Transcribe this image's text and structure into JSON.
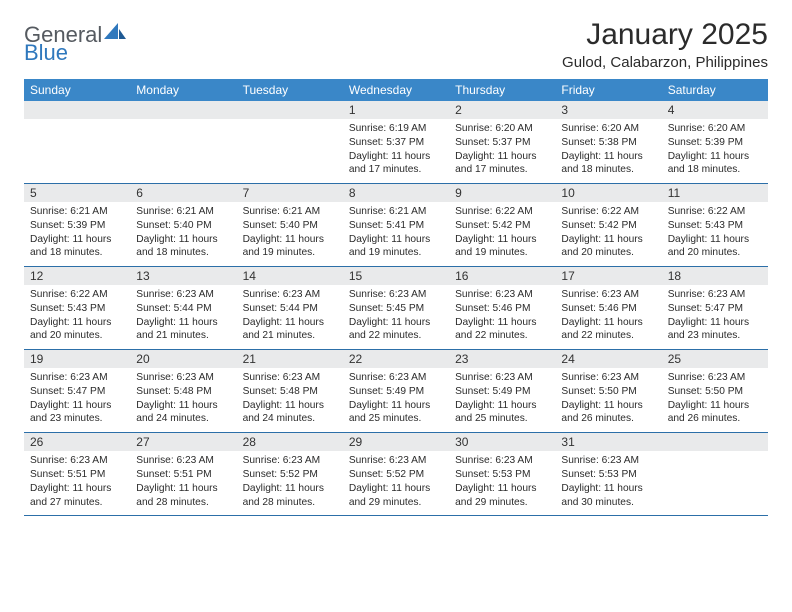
{
  "brand": {
    "part1": "General",
    "part2": "Blue"
  },
  "title": "January 2025",
  "location": "Gulod, Calabarzon, Philippines",
  "colors": {
    "header_bg": "#3a87c8",
    "header_text": "#ffffff",
    "daynum_bg": "#e9eaeb",
    "row_border": "#2c6fa8",
    "logo_gray": "#555a60",
    "logo_blue": "#2f78bd",
    "page_bg": "#ffffff",
    "text": "#2b2b2b"
  },
  "day_headers": [
    "Sunday",
    "Monday",
    "Tuesday",
    "Wednesday",
    "Thursday",
    "Friday",
    "Saturday"
  ],
  "weeks": [
    [
      {
        "n": "",
        "sr": "",
        "ss": "",
        "dl": ""
      },
      {
        "n": "",
        "sr": "",
        "ss": "",
        "dl": ""
      },
      {
        "n": "",
        "sr": "",
        "ss": "",
        "dl": ""
      },
      {
        "n": "1",
        "sr": "Sunrise: 6:19 AM",
        "ss": "Sunset: 5:37 PM",
        "dl": "Daylight: 11 hours and 17 minutes."
      },
      {
        "n": "2",
        "sr": "Sunrise: 6:20 AM",
        "ss": "Sunset: 5:37 PM",
        "dl": "Daylight: 11 hours and 17 minutes."
      },
      {
        "n": "3",
        "sr": "Sunrise: 6:20 AM",
        "ss": "Sunset: 5:38 PM",
        "dl": "Daylight: 11 hours and 18 minutes."
      },
      {
        "n": "4",
        "sr": "Sunrise: 6:20 AM",
        "ss": "Sunset: 5:39 PM",
        "dl": "Daylight: 11 hours and 18 minutes."
      }
    ],
    [
      {
        "n": "5",
        "sr": "Sunrise: 6:21 AM",
        "ss": "Sunset: 5:39 PM",
        "dl": "Daylight: 11 hours and 18 minutes."
      },
      {
        "n": "6",
        "sr": "Sunrise: 6:21 AM",
        "ss": "Sunset: 5:40 PM",
        "dl": "Daylight: 11 hours and 18 minutes."
      },
      {
        "n": "7",
        "sr": "Sunrise: 6:21 AM",
        "ss": "Sunset: 5:40 PM",
        "dl": "Daylight: 11 hours and 19 minutes."
      },
      {
        "n": "8",
        "sr": "Sunrise: 6:21 AM",
        "ss": "Sunset: 5:41 PM",
        "dl": "Daylight: 11 hours and 19 minutes."
      },
      {
        "n": "9",
        "sr": "Sunrise: 6:22 AM",
        "ss": "Sunset: 5:42 PM",
        "dl": "Daylight: 11 hours and 19 minutes."
      },
      {
        "n": "10",
        "sr": "Sunrise: 6:22 AM",
        "ss": "Sunset: 5:42 PM",
        "dl": "Daylight: 11 hours and 20 minutes."
      },
      {
        "n": "11",
        "sr": "Sunrise: 6:22 AM",
        "ss": "Sunset: 5:43 PM",
        "dl": "Daylight: 11 hours and 20 minutes."
      }
    ],
    [
      {
        "n": "12",
        "sr": "Sunrise: 6:22 AM",
        "ss": "Sunset: 5:43 PM",
        "dl": "Daylight: 11 hours and 20 minutes."
      },
      {
        "n": "13",
        "sr": "Sunrise: 6:23 AM",
        "ss": "Sunset: 5:44 PM",
        "dl": "Daylight: 11 hours and 21 minutes."
      },
      {
        "n": "14",
        "sr": "Sunrise: 6:23 AM",
        "ss": "Sunset: 5:44 PM",
        "dl": "Daylight: 11 hours and 21 minutes."
      },
      {
        "n": "15",
        "sr": "Sunrise: 6:23 AM",
        "ss": "Sunset: 5:45 PM",
        "dl": "Daylight: 11 hours and 22 minutes."
      },
      {
        "n": "16",
        "sr": "Sunrise: 6:23 AM",
        "ss": "Sunset: 5:46 PM",
        "dl": "Daylight: 11 hours and 22 minutes."
      },
      {
        "n": "17",
        "sr": "Sunrise: 6:23 AM",
        "ss": "Sunset: 5:46 PM",
        "dl": "Daylight: 11 hours and 22 minutes."
      },
      {
        "n": "18",
        "sr": "Sunrise: 6:23 AM",
        "ss": "Sunset: 5:47 PM",
        "dl": "Daylight: 11 hours and 23 minutes."
      }
    ],
    [
      {
        "n": "19",
        "sr": "Sunrise: 6:23 AM",
        "ss": "Sunset: 5:47 PM",
        "dl": "Daylight: 11 hours and 23 minutes."
      },
      {
        "n": "20",
        "sr": "Sunrise: 6:23 AM",
        "ss": "Sunset: 5:48 PM",
        "dl": "Daylight: 11 hours and 24 minutes."
      },
      {
        "n": "21",
        "sr": "Sunrise: 6:23 AM",
        "ss": "Sunset: 5:48 PM",
        "dl": "Daylight: 11 hours and 24 minutes."
      },
      {
        "n": "22",
        "sr": "Sunrise: 6:23 AM",
        "ss": "Sunset: 5:49 PM",
        "dl": "Daylight: 11 hours and 25 minutes."
      },
      {
        "n": "23",
        "sr": "Sunrise: 6:23 AM",
        "ss": "Sunset: 5:49 PM",
        "dl": "Daylight: 11 hours and 25 minutes."
      },
      {
        "n": "24",
        "sr": "Sunrise: 6:23 AM",
        "ss": "Sunset: 5:50 PM",
        "dl": "Daylight: 11 hours and 26 minutes."
      },
      {
        "n": "25",
        "sr": "Sunrise: 6:23 AM",
        "ss": "Sunset: 5:50 PM",
        "dl": "Daylight: 11 hours and 26 minutes."
      }
    ],
    [
      {
        "n": "26",
        "sr": "Sunrise: 6:23 AM",
        "ss": "Sunset: 5:51 PM",
        "dl": "Daylight: 11 hours and 27 minutes."
      },
      {
        "n": "27",
        "sr": "Sunrise: 6:23 AM",
        "ss": "Sunset: 5:51 PM",
        "dl": "Daylight: 11 hours and 28 minutes."
      },
      {
        "n": "28",
        "sr": "Sunrise: 6:23 AM",
        "ss": "Sunset: 5:52 PM",
        "dl": "Daylight: 11 hours and 28 minutes."
      },
      {
        "n": "29",
        "sr": "Sunrise: 6:23 AM",
        "ss": "Sunset: 5:52 PM",
        "dl": "Daylight: 11 hours and 29 minutes."
      },
      {
        "n": "30",
        "sr": "Sunrise: 6:23 AM",
        "ss": "Sunset: 5:53 PM",
        "dl": "Daylight: 11 hours and 29 minutes."
      },
      {
        "n": "31",
        "sr": "Sunrise: 6:23 AM",
        "ss": "Sunset: 5:53 PM",
        "dl": "Daylight: 11 hours and 30 minutes."
      },
      {
        "n": "",
        "sr": "",
        "ss": "",
        "dl": ""
      }
    ]
  ]
}
